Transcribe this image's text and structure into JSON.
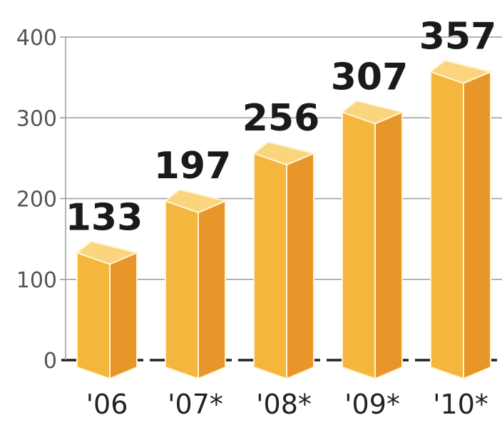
{
  "chart_data": {
    "type": "bar",
    "categories": [
      "'06",
      "'07*",
      "'08*",
      "'09*",
      "'10*"
    ],
    "values": [
      133,
      197,
      256,
      307,
      357
    ],
    "value_labels": [
      "133",
      "197",
      "256",
      "307",
      "357"
    ],
    "yticks": [
      0,
      100,
      200,
      300,
      400
    ],
    "ytick_labels": [
      "0",
      "100",
      "200",
      "300",
      "400"
    ],
    "ylim": [
      0,
      400
    ],
    "grid": true,
    "title": "",
    "xlabel": "",
    "ylabel": "",
    "colors": {
      "bar_front": "#F4B63C",
      "bar_side": "#E8962A",
      "bar_top": "#FAD57E",
      "bar_edge": "#FFF4D6",
      "grid": "#9A9A9A",
      "baseline": "#222222"
    }
  }
}
